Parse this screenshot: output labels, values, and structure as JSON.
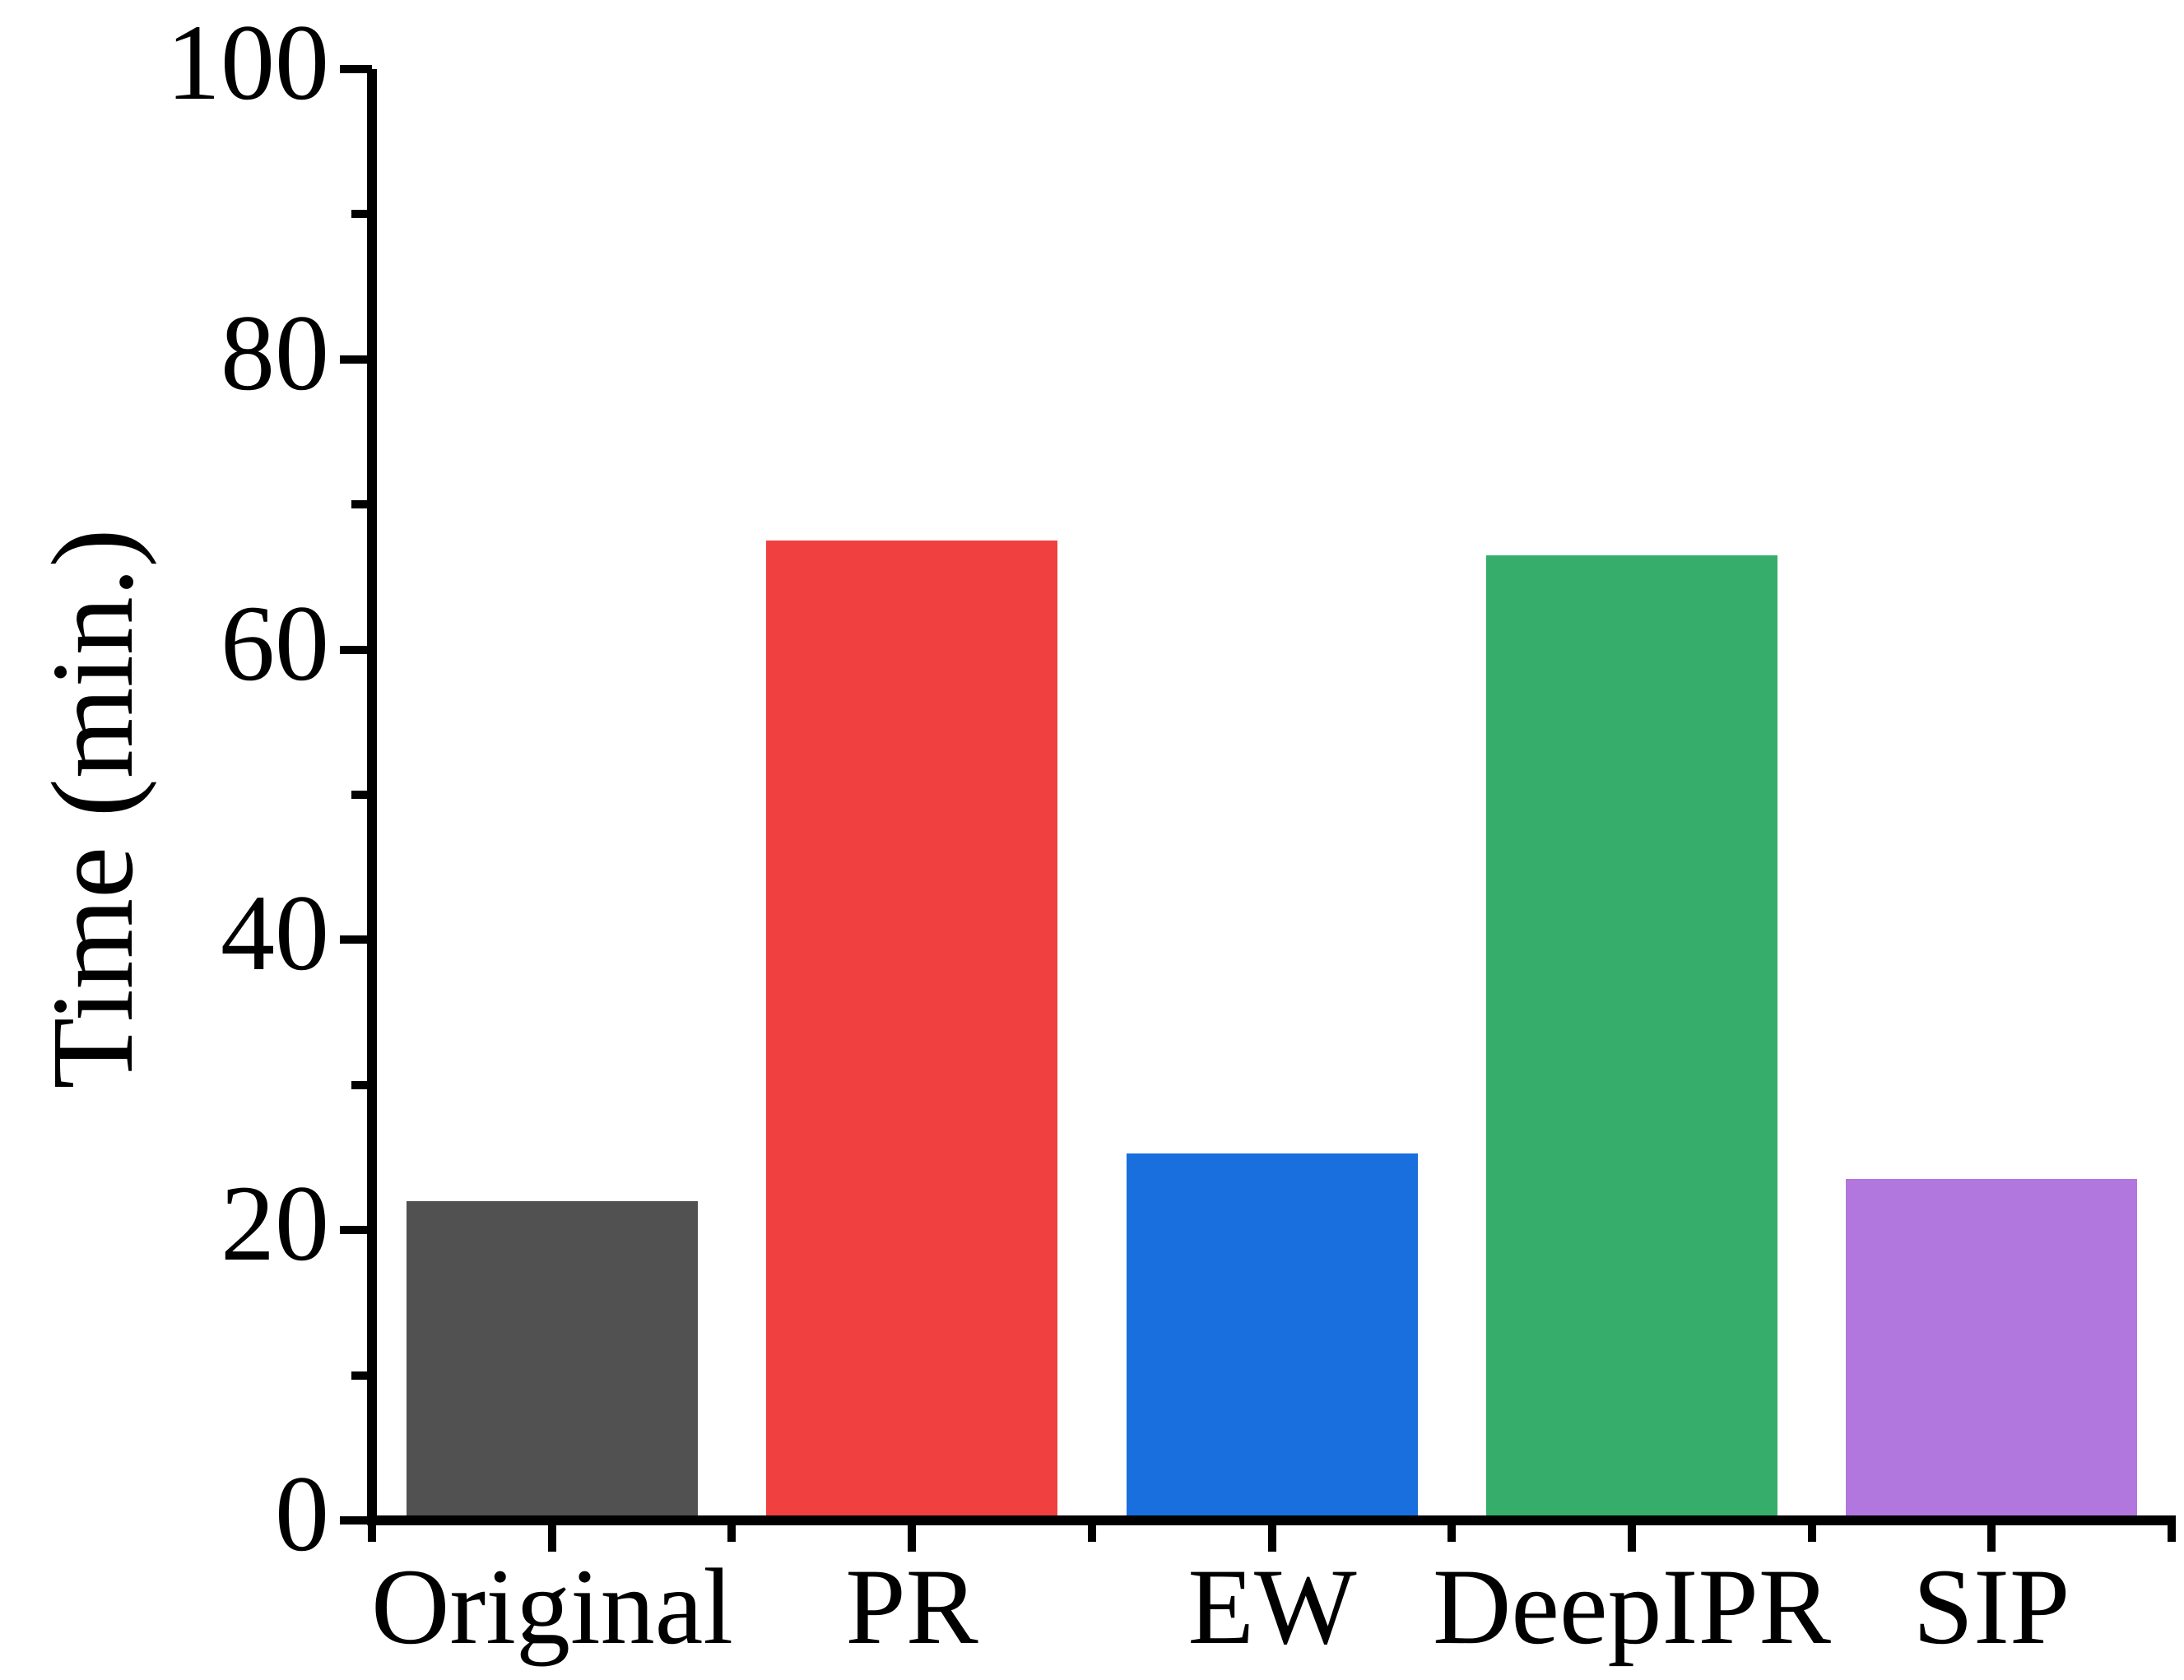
{
  "figure": {
    "background_color": "#ffffff",
    "axis_color": "#000000",
    "text_color": "#000000"
  },
  "chart_data": {
    "type": "bar",
    "categories": [
      "Original",
      "PR",
      "EW",
      "DeepIPR",
      "SIP"
    ],
    "values": [
      22,
      67.5,
      25.3,
      66.5,
      23.5
    ],
    "bar_colors": [
      "#515151",
      "#F14040",
      "#1A6FDF",
      "#37AD6B",
      "#B177DE"
    ],
    "title": "",
    "xlabel": "",
    "ylabel": "Time (min.)",
    "ylim": [
      0,
      100
    ],
    "yticks_major": [
      0,
      20,
      40,
      60,
      80,
      100
    ],
    "yticks_minor": [
      10,
      30,
      50,
      70,
      90
    ],
    "grid": false,
    "legend": "none"
  }
}
